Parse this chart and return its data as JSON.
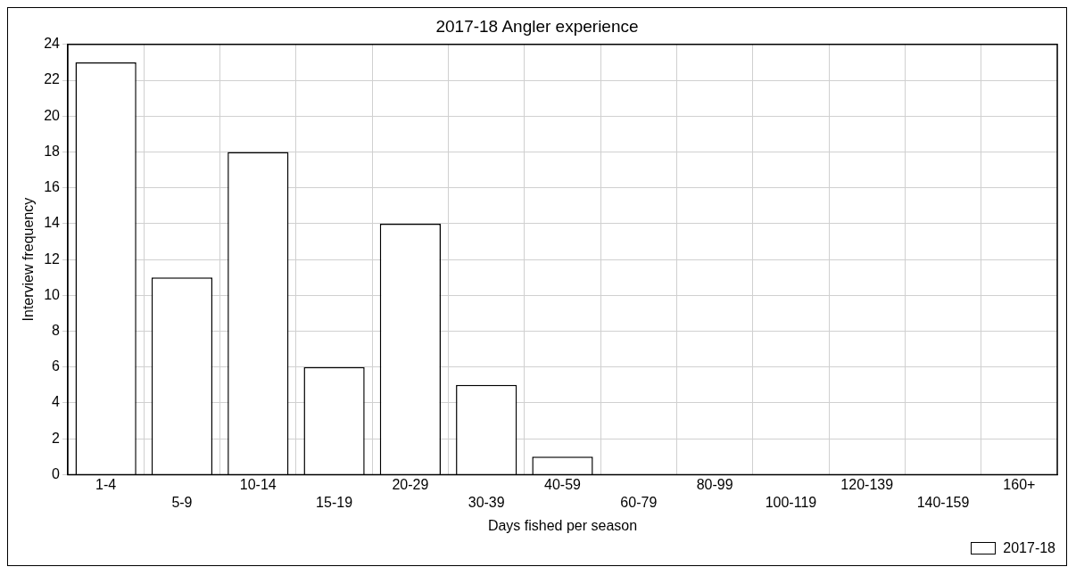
{
  "chart_data": {
    "type": "bar",
    "title": "2017-18 Angler experience",
    "xlabel": "Days fished per season",
    "ylabel": "Interview frequency",
    "categories": [
      "1-4",
      "5-9",
      "10-14",
      "15-19",
      "20-29",
      "30-39",
      "40-59",
      "60-79",
      "80-99",
      "100-119",
      "120-139",
      "140-159",
      "160+"
    ],
    "series": [
      {
        "name": "2017-18",
        "color": "#ffffff",
        "values": [
          23,
          11,
          18,
          6,
          14,
          5,
          1,
          0,
          0,
          0,
          0,
          0,
          0
        ]
      }
    ],
    "ylim": [
      0,
      24
    ],
    "yticks": [
      0,
      2,
      4,
      6,
      8,
      10,
      12,
      14,
      16,
      18,
      20,
      22,
      24
    ],
    "grid": true,
    "legend": "bottom right"
  }
}
